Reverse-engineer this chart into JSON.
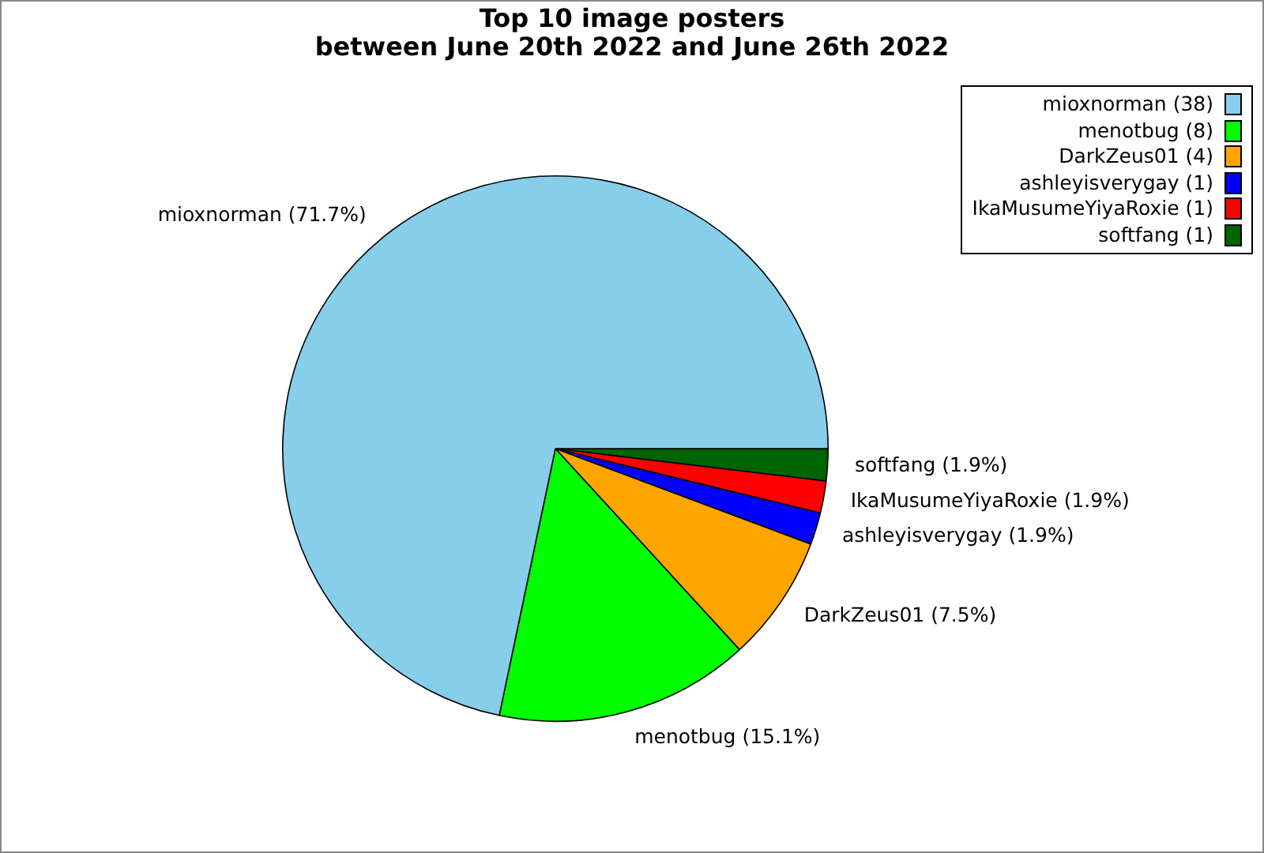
{
  "chart_data": {
    "type": "pie",
    "title": "Top 10 image posters\nbetween June 20th 2022 and June 26th 2022",
    "categories": [
      "mioxnorman (38)",
      "menotbug (8)",
      "DarkZeus01 (4)",
      "ashleyisverygay (1)",
      "IkaMusumeYiyaRoxie (1)",
      "softfang (1)"
    ],
    "values": [
      71.7,
      15.1,
      7.5,
      1.9,
      1.9,
      1.9
    ],
    "value_labels": [
      "mioxnorman (71.7%)",
      "menotbug (15.1%)",
      "DarkZeus01 (7.5%)",
      "ashleyisverygay (1.9%)",
      "IkaMusumeYiyaRoxie (1.9%)",
      "softfang (1.9%)"
    ],
    "colors": [
      "#87ceeb",
      "#00ff00",
      "#ffa500",
      "#0000ff",
      "#ff0000",
      "#006400"
    ],
    "legend": "top right"
  }
}
